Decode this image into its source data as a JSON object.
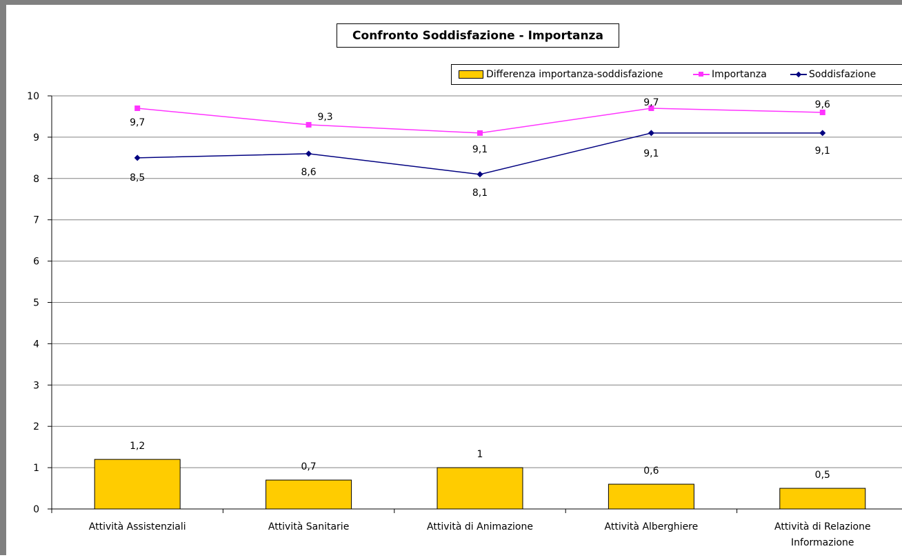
{
  "chart_data": {
    "type": "bar",
    "title": "Confronto Soddisfazione - Importanza",
    "categories": [
      [
        "Attività Assistenziali"
      ],
      [
        "Attività Sanitarie"
      ],
      [
        "Attività di Animazione"
      ],
      [
        "Attività Alberghiere"
      ],
      [
        "Attività di Relazione",
        "Informazione"
      ]
    ],
    "ylim": [
      0,
      10
    ],
    "yticks": [
      "0",
      "1",
      "2",
      "3",
      "4",
      "5",
      "6",
      "7",
      "8",
      "9",
      "10"
    ],
    "grid": true,
    "legend_position": "top-right",
    "series": [
      {
        "name": "Differenza importanza-soddisfazione",
        "kind": "bar",
        "color": "#FFCC00",
        "values": [
          1.2,
          0.7,
          1.0,
          0.6,
          0.5
        ],
        "labels": [
          "1,2",
          "0,7",
          "1",
          "0,6",
          "0,5"
        ]
      },
      {
        "name": "Importanza",
        "kind": "line",
        "marker": "square",
        "color": "#FF33FF",
        "values": [
          9.7,
          9.3,
          9.1,
          9.7,
          9.6
        ],
        "labels": [
          "9,7",
          "9,3",
          "9,1",
          "9,7",
          "9,6"
        ]
      },
      {
        "name": "Soddisfazione",
        "kind": "line",
        "marker": "diamond",
        "color": "#000080",
        "values": [
          8.5,
          8.6,
          8.1,
          9.1,
          9.1
        ],
        "labels": [
          "8,5",
          "8,6",
          "8,1",
          "9,1",
          "9,1"
        ]
      }
    ]
  }
}
